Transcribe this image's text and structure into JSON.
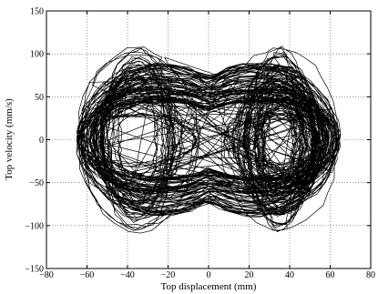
{
  "chart_data": {
    "type": "line",
    "title": "",
    "xlabel": "Top displacement (mm)",
    "ylabel": "Top velocity (mm/s)",
    "xlim": [
      -80,
      80
    ],
    "ylim": [
      -150,
      150
    ],
    "x_ticks": [
      -80,
      -60,
      -40,
      -20,
      0,
      20,
      40,
      60,
      80
    ],
    "y_ticks": [
      -150,
      -100,
      -50,
      0,
      50,
      100,
      150
    ],
    "x_tick_labels": [
      "−80",
      "−60",
      "−40",
      "−20",
      "0",
      "20",
      "40",
      "60",
      "80"
    ],
    "y_tick_labels": [
      "−150",
      "−100",
      "−50",
      "0",
      "50",
      "100",
      "150"
    ],
    "grid": true,
    "grid_style": "dotted",
    "legend": "none",
    "series": [
      {
        "line_color": "#000000",
        "description_points": {
          "x_range": [
            -65,
            66
          ],
          "y_range": [
            -122,
            120
          ],
          "attractor_centers": [
            -35,
            35
          ]
        }
      }
    ]
  }
}
